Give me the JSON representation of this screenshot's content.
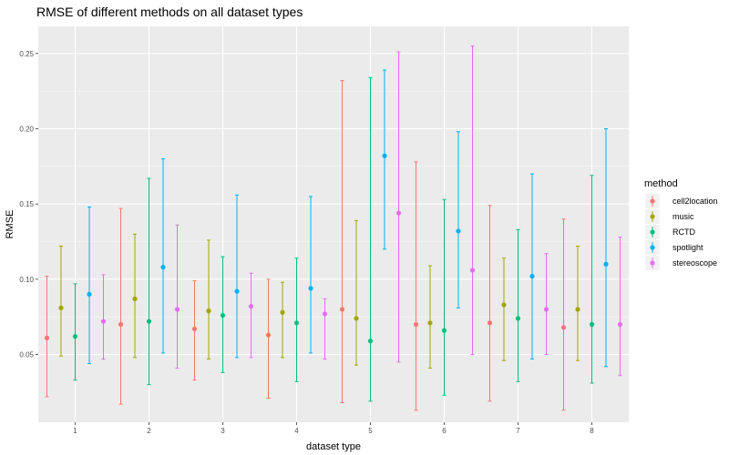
{
  "chart_data": {
    "type": "scatter",
    "title": "RMSE of different methods on all dataset types",
    "xlabel": "dataset type",
    "ylabel": "RMSE",
    "categories": [
      "1",
      "2",
      "3",
      "4",
      "5",
      "6",
      "7",
      "8"
    ],
    "ylim": [
      0.005,
      0.268
    ],
    "yticks": [
      0.05,
      0.1,
      0.15,
      0.2,
      0.25
    ],
    "ytick_labels": [
      "0.05",
      "0.10",
      "0.15",
      "0.20",
      "0.25"
    ],
    "grid": true,
    "legend": {
      "title": "method",
      "position": "right"
    },
    "series": [
      {
        "name": "cell2location",
        "color": "#F8766D",
        "mean": [
          0.061,
          0.07,
          0.067,
          0.063,
          0.08,
          0.07,
          0.071,
          0.068
        ],
        "lower": [
          0.022,
          0.017,
          0.033,
          0.021,
          0.018,
          0.013,
          0.019,
          0.013
        ],
        "upper": [
          0.102,
          0.147,
          0.099,
          0.1,
          0.232,
          0.178,
          0.149,
          0.14
        ]
      },
      {
        "name": "music",
        "color": "#A3A500",
        "mean": [
          0.081,
          0.087,
          0.079,
          0.078,
          0.074,
          0.071,
          0.083,
          0.08
        ],
        "lower": [
          0.049,
          0.048,
          0.047,
          0.048,
          0.043,
          0.041,
          0.046,
          0.046
        ],
        "upper": [
          0.122,
          0.13,
          0.126,
          0.098,
          0.139,
          0.109,
          0.114,
          0.122
        ]
      },
      {
        "name": "RCTD",
        "color": "#00BF7D",
        "mean": [
          0.062,
          0.072,
          0.076,
          0.071,
          0.059,
          0.066,
          0.074,
          0.07
        ],
        "lower": [
          0.033,
          0.03,
          0.038,
          0.032,
          0.019,
          0.023,
          0.032,
          0.031
        ],
        "upper": [
          0.097,
          0.167,
          0.115,
          0.114,
          0.234,
          0.153,
          0.133,
          0.169
        ]
      },
      {
        "name": "spotlight",
        "color": "#00B0F6",
        "mean": [
          0.09,
          0.108,
          0.092,
          0.094,
          0.182,
          0.132,
          0.102,
          0.11
        ],
        "lower": [
          0.044,
          0.051,
          0.048,
          0.051,
          0.12,
          0.081,
          0.047,
          0.042
        ],
        "upper": [
          0.148,
          0.18,
          0.156,
          0.155,
          0.239,
          0.198,
          0.17,
          0.2
        ]
      },
      {
        "name": "stereoscope",
        "color": "#E76BF3",
        "mean": [
          0.072,
          0.08,
          0.082,
          0.077,
          0.144,
          0.106,
          0.08,
          0.07
        ],
        "lower": [
          0.047,
          0.041,
          0.048,
          0.047,
          0.045,
          0.05,
          0.05,
          0.036
        ],
        "upper": [
          0.103,
          0.136,
          0.104,
          0.087,
          0.251,
          0.255,
          0.117,
          0.128
        ]
      }
    ]
  }
}
